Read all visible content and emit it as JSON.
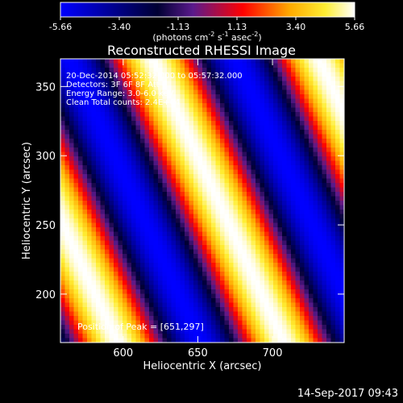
{
  "chart_data": {
    "type": "heatmap",
    "title": "Reconstructed RHESSI Image",
    "xlabel": "Heliocentric X (arcsec)",
    "ylabel": "Heliocentric Y (arcsec)",
    "xlim": [
      558,
      748
    ],
    "ylim": [
      165,
      370
    ],
    "x_ticks": [
      600,
      650,
      700
    ],
    "y_ticks": [
      200,
      250,
      300,
      350
    ],
    "colorbar": {
      "ticks": [
        "-5.66",
        "-3.40",
        "-1.13",
        "1.13",
        "3.40",
        "5.66"
      ],
      "range": [
        -5.66,
        5.66
      ],
      "label_main": "(photons cm",
      "label_exp1": "-2",
      "label_mid": " s",
      "label_exp2": "-1",
      "label_end": " asec",
      "label_exp3": "-2",
      "label_close": ")"
    },
    "annotations": [
      "20-Dec-2014 05:52:32.000 to 05:57:32.000",
      "Detectors: 3F 6F 8F  Att 0",
      "Energy Range: 3.0-6.0 keV",
      "Clean     Total counts: 2.4E+04"
    ],
    "peak_label": "Position of Peak = [651,297]",
    "peak": [
      651,
      297
    ],
    "fringe_model": {
      "amplitude": 5.66,
      "direction_x": 0.7,
      "direction_y": 0.3,
      "period_arcsec": 78,
      "description": "periodic striped pattern"
    }
  },
  "footer": {
    "timestamp": "14-Sep-2017 09:43"
  }
}
